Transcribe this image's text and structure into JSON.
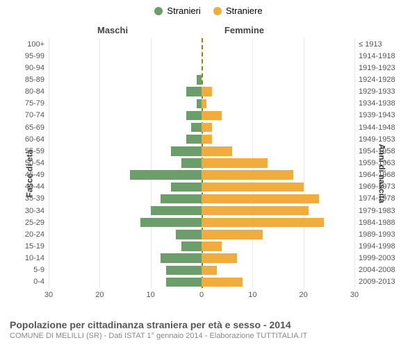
{
  "legend": {
    "male": "Stranieri",
    "female": "Straniere"
  },
  "header": {
    "males": "Maschi",
    "females": "Femmine"
  },
  "axis": {
    "left_title": "Fasce di età",
    "right_title": "Anni di nascita"
  },
  "footer": {
    "title": "Popolazione per cittadinanza straniera per età e sesso - 2014",
    "subtitle": "COMUNE DI MELILLI (SR) - Dati ISTAT 1° gennaio 2014 - Elaborazione TUTTITALIA.IT"
  },
  "chart": {
    "type": "population-pyramid",
    "xmax": 30,
    "xticks_left": [
      30,
      20,
      10,
      0
    ],
    "xticks_right": [
      10,
      20,
      30
    ],
    "colors": {
      "male": "#6b9e6b",
      "female": "#f0ad3d",
      "grid": "#e8e8e8",
      "center": "#888800",
      "background": "#ffffff"
    },
    "bar_gap_ratio": 0.22,
    "rows": [
      {
        "age": "100+",
        "birth": "≤ 1913",
        "m": 0,
        "f": 0
      },
      {
        "age": "95-99",
        "birth": "1914-1918",
        "m": 0,
        "f": 0
      },
      {
        "age": "90-94",
        "birth": "1919-1923",
        "m": 0,
        "f": 0
      },
      {
        "age": "85-89",
        "birth": "1924-1928",
        "m": 1,
        "f": 0
      },
      {
        "age": "80-84",
        "birth": "1929-1933",
        "m": 3,
        "f": 2
      },
      {
        "age": "75-79",
        "birth": "1934-1938",
        "m": 1,
        "f": 1
      },
      {
        "age": "70-74",
        "birth": "1939-1943",
        "m": 3,
        "f": 4
      },
      {
        "age": "65-69",
        "birth": "1944-1948",
        "m": 2,
        "f": 2
      },
      {
        "age": "60-64",
        "birth": "1949-1953",
        "m": 3,
        "f": 2
      },
      {
        "age": "55-59",
        "birth": "1954-1958",
        "m": 6,
        "f": 6
      },
      {
        "age": "50-54",
        "birth": "1959-1963",
        "m": 4,
        "f": 13
      },
      {
        "age": "45-49",
        "birth": "1964-1968",
        "m": 14,
        "f": 18
      },
      {
        "age": "40-44",
        "birth": "1969-1973",
        "m": 6,
        "f": 20
      },
      {
        "age": "35-39",
        "birth": "1974-1978",
        "m": 8,
        "f": 23
      },
      {
        "age": "30-34",
        "birth": "1979-1983",
        "m": 10,
        "f": 21
      },
      {
        "age": "25-29",
        "birth": "1984-1988",
        "m": 12,
        "f": 24
      },
      {
        "age": "20-24",
        "birth": "1989-1993",
        "m": 5,
        "f": 12
      },
      {
        "age": "15-19",
        "birth": "1994-1998",
        "m": 4,
        "f": 4
      },
      {
        "age": "10-14",
        "birth": "1999-2003",
        "m": 8,
        "f": 7
      },
      {
        "age": "5-9",
        "birth": "2004-2008",
        "m": 7,
        "f": 3
      },
      {
        "age": "0-4",
        "birth": "2009-2013",
        "m": 7,
        "f": 8
      }
    ]
  }
}
